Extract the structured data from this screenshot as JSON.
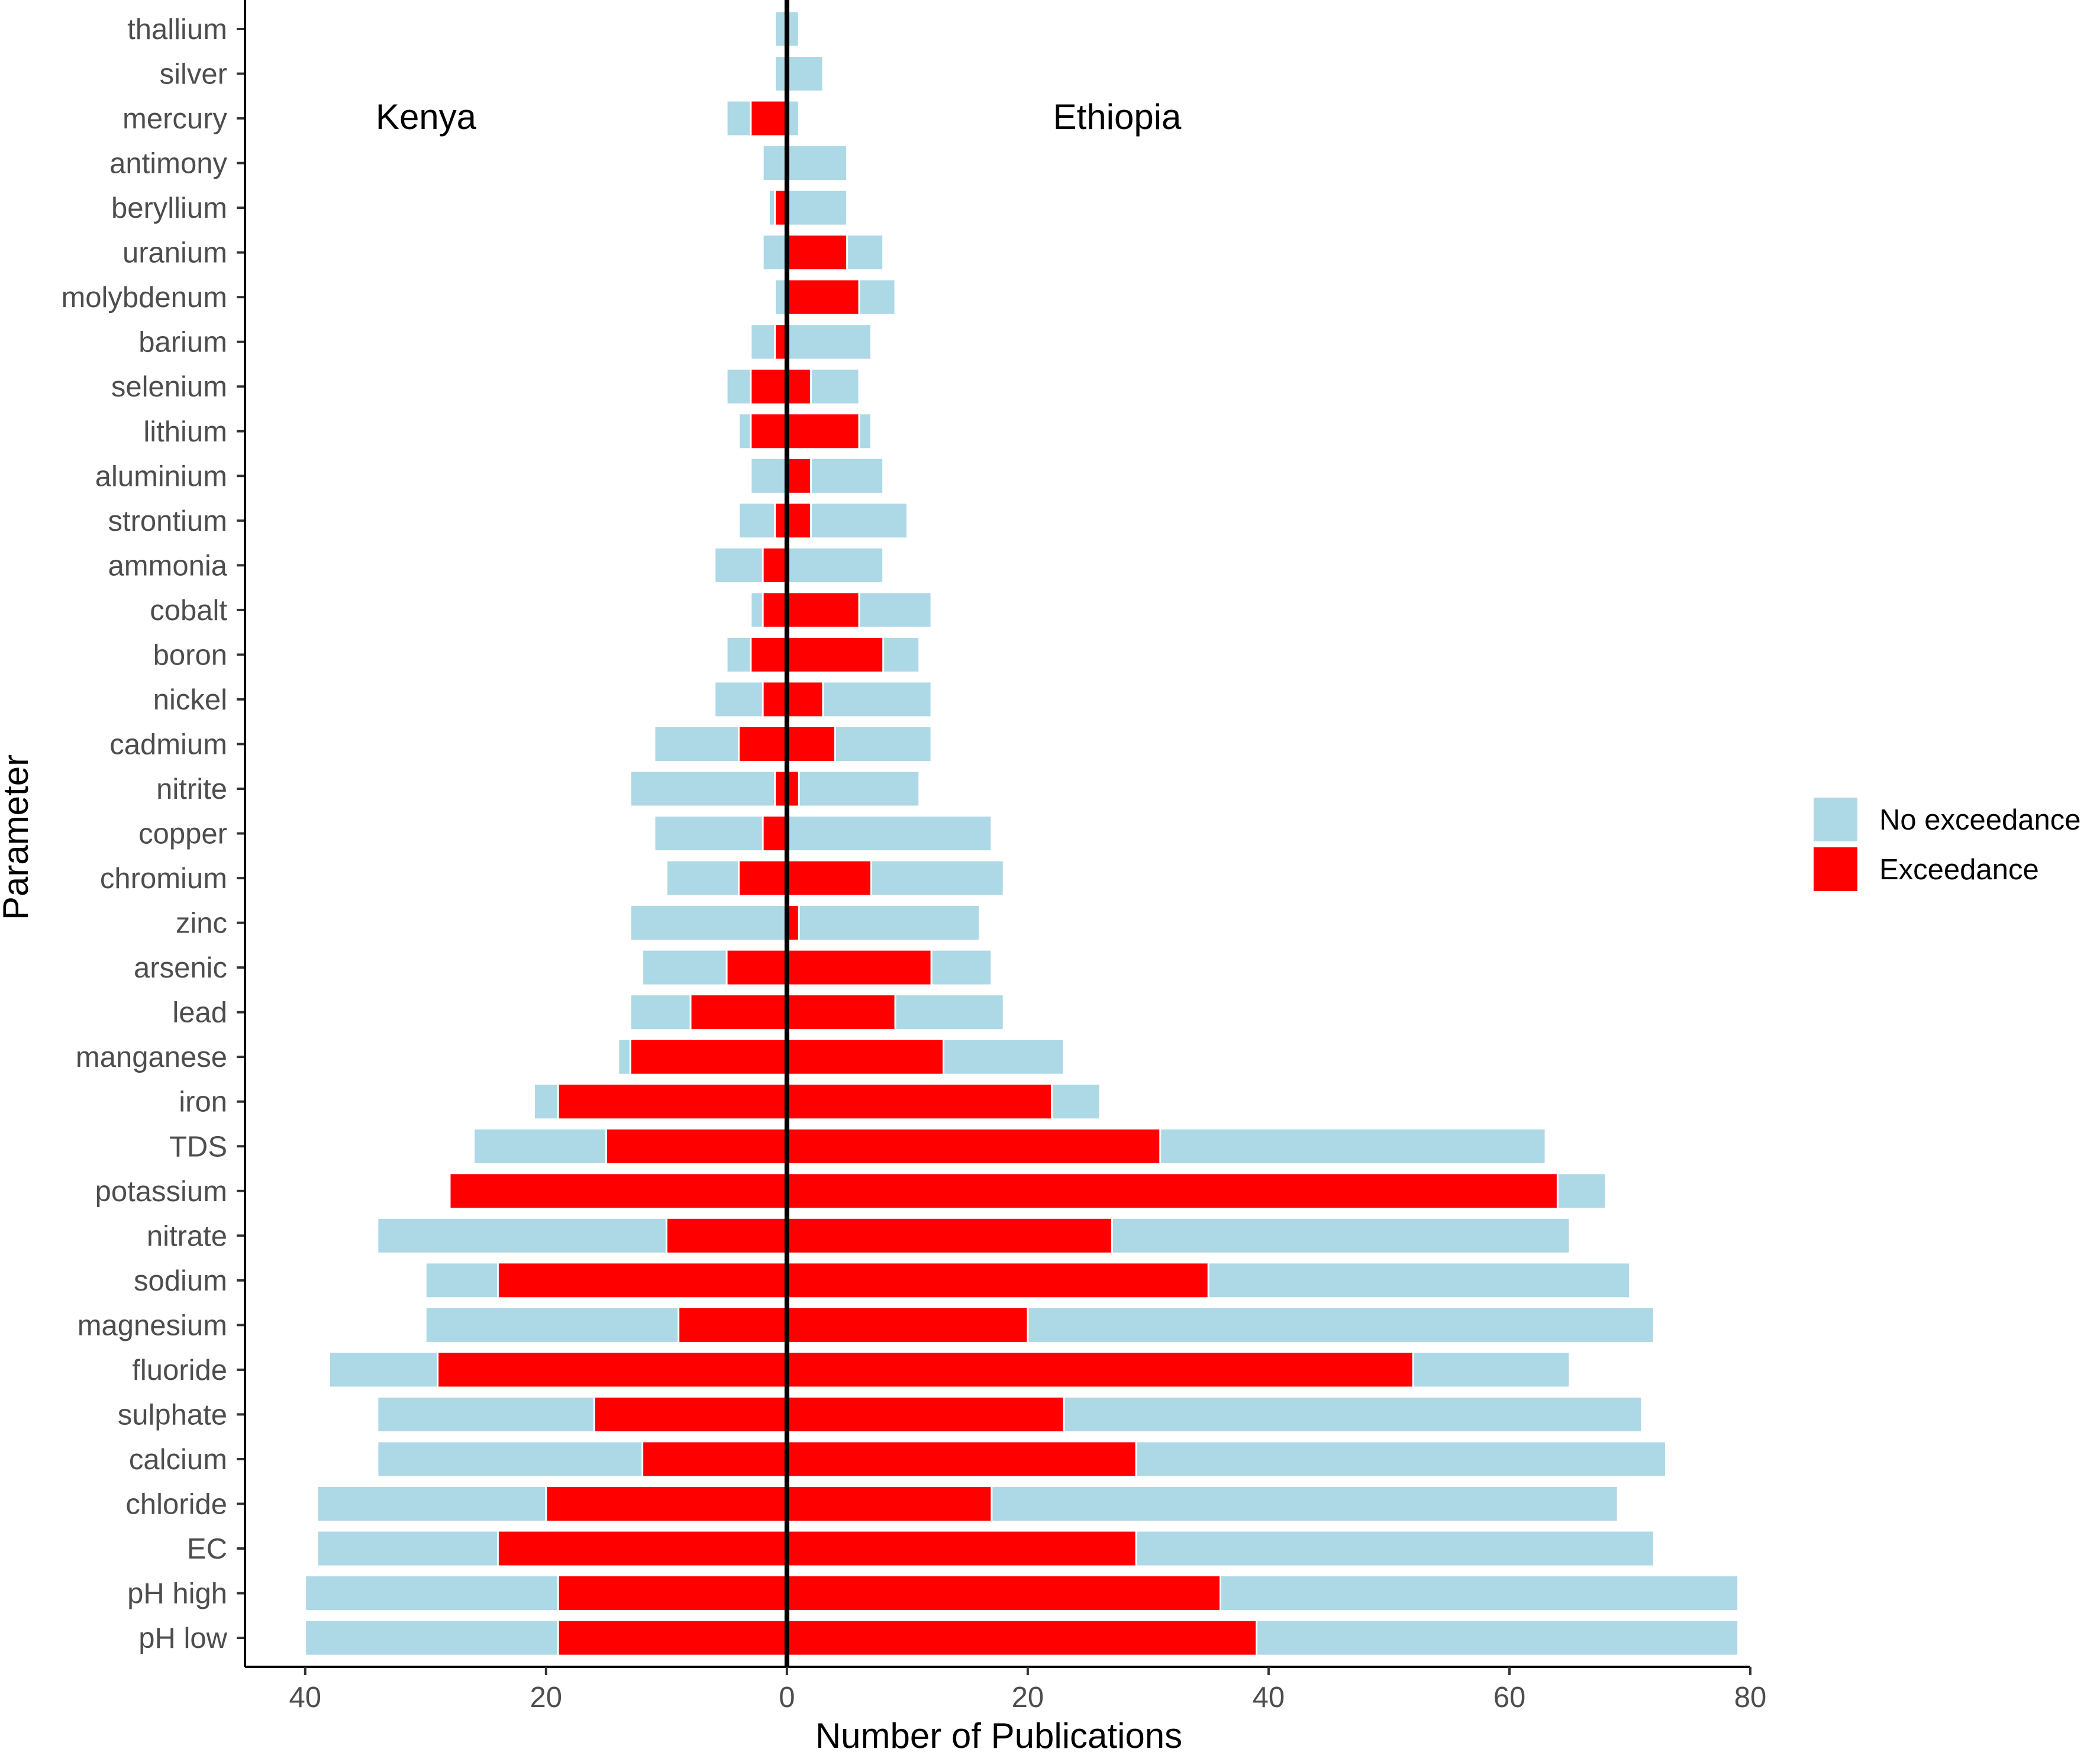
{
  "chart_data": {
    "type": "bar",
    "orientation": "horizontal",
    "layout": "diverging",
    "xlabel": "Number of Publications",
    "ylabel": "Parameter",
    "xlim": [
      -45,
      80
    ],
    "x_ticks": [
      -40,
      -20,
      0,
      20,
      40,
      60,
      80
    ],
    "x_tick_labels": [
      "40",
      "20",
      "0",
      "20",
      "40",
      "60",
      "80"
    ],
    "grid": false,
    "legend_position": "right",
    "country_labels": {
      "left": "Kenya",
      "right": "Ethiopia"
    },
    "categories": [
      "thallium",
      "silver",
      "mercury",
      "antimony",
      "beryllium",
      "uranium",
      "molybdenum",
      "barium",
      "selenium",
      "lithium",
      "aluminium",
      "strontium",
      "ammonia",
      "cobalt",
      "boron",
      "nickel",
      "cadmium",
      "nitrite",
      "copper",
      "chromium",
      "zinc",
      "arsenic",
      "lead",
      "manganese",
      "iron",
      "TDS",
      "potassium",
      "nitrate",
      "sodium",
      "magnesium",
      "fluoride",
      "sulphate",
      "calcium",
      "chloride",
      "EC",
      "pH high",
      "pH low"
    ],
    "series": [
      {
        "name": "No exceedance",
        "color": "#add8e6",
        "kenya_total": [
          1,
          1,
          5,
          2,
          1.5,
          2,
          1,
          3,
          5,
          4,
          3,
          4,
          6,
          3,
          5,
          6,
          11,
          13,
          11,
          10,
          13,
          12,
          13,
          14,
          21,
          26,
          28,
          34,
          30,
          30,
          38,
          34,
          34,
          39,
          39,
          40,
          40
        ],
        "ethiopia_total": [
          1,
          3,
          1,
          5,
          5,
          8,
          9,
          7,
          6,
          7,
          8,
          10,
          8,
          12,
          11,
          12,
          12,
          11,
          17,
          18,
          16,
          17,
          18,
          23,
          26,
          63,
          68,
          65,
          70,
          72,
          65,
          71,
          73,
          69,
          72,
          79,
          79
        ]
      },
      {
        "name": "Exceedance",
        "color": "#ff0000",
        "kenya": [
          0,
          0,
          3,
          0,
          1,
          0,
          0,
          1,
          3,
          3,
          0,
          1,
          2,
          2,
          3,
          2,
          4,
          1,
          2,
          4,
          0,
          5,
          8,
          13,
          19,
          15,
          28,
          10,
          24,
          9,
          29,
          16,
          12,
          20,
          24,
          19,
          19
        ],
        "ethiopia": [
          0,
          0,
          0,
          0,
          0,
          5,
          6,
          0,
          2,
          6,
          2,
          2,
          0,
          6,
          8,
          3,
          4,
          1,
          0,
          7,
          1,
          12,
          9,
          13,
          22,
          31,
          64,
          27,
          35,
          20,
          52,
          23,
          29,
          17,
          29,
          36,
          39
        ]
      }
    ]
  },
  "legend": {
    "items": [
      {
        "label": "No exceedance",
        "color": "#add8e6"
      },
      {
        "label": "Exceedance",
        "color": "#ff0000"
      }
    ]
  }
}
